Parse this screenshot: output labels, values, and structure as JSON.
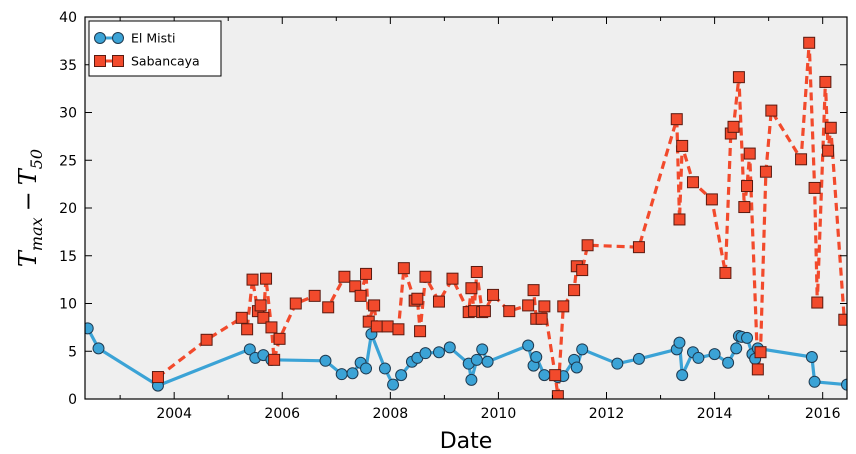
{
  "chart_data": {
    "type": "line",
    "xlabel": "Date",
    "ylabel_parts": {
      "main": "T",
      "sub1": "max",
      "minus": "−",
      "main2": "T",
      "sub2": "50"
    },
    "xlim": [
      2002.35,
      2016.45
    ],
    "ylim": [
      0,
      40
    ],
    "x_ticks": [
      2004,
      2006,
      2008,
      2010,
      2012,
      2014,
      2016
    ],
    "x_tick_labels": [
      "2004",
      "2006",
      "2008",
      "2010",
      "2012",
      "2014",
      "2016"
    ],
    "y_ticks": [
      0,
      5,
      10,
      15,
      20,
      25,
      30,
      35,
      40
    ],
    "y_tick_labels": [
      "0",
      "5",
      "10",
      "15",
      "20",
      "25",
      "30",
      "35",
      "40"
    ],
    "grid": false,
    "legend_position": "top-left",
    "plot_background": "#efefef",
    "series": [
      {
        "name": "El Misti",
        "color": "#3ba3d6",
        "line_style": "solid",
        "marker": "circle",
        "x": [
          2002.4,
          2002.6,
          2003.7,
          2005.4,
          2005.5,
          2005.65,
          2005.8,
          2006.8,
          2007.1,
          2007.3,
          2007.45,
          2007.55,
          2007.65,
          2007.9,
          2008.05,
          2008.2,
          2008.4,
          2008.5,
          2008.65,
          2008.9,
          2009.1,
          2009.45,
          2009.5,
          2009.6,
          2009.7,
          2009.8,
          2010.55,
          2010.65,
          2010.7,
          2010.85,
          2011.1,
          2011.2,
          2011.4,
          2011.45,
          2011.55,
          2012.2,
          2012.6,
          2013.3,
          2013.35,
          2013.4,
          2013.6,
          2013.7,
          2014.0,
          2014.25,
          2014.4,
          2014.45,
          2014.5,
          2014.6,
          2014.7,
          2014.75,
          2014.8,
          2015.8,
          2015.85,
          2016.45
        ],
        "y": [
          7.4,
          5.3,
          1.4,
          5.2,
          4.3,
          4.6,
          4.1,
          4.0,
          2.6,
          2.7,
          3.8,
          3.2,
          6.8,
          3.2,
          1.5,
          2.5,
          3.9,
          4.3,
          4.8,
          4.9,
          5.4,
          3.7,
          2.0,
          4.1,
          5.2,
          3.9,
          5.6,
          3.5,
          4.4,
          2.5,
          2.3,
          2.4,
          4.1,
          3.3,
          5.2,
          3.7,
          4.2,
          5.2,
          5.9,
          2.5,
          4.9,
          4.3,
          4.7,
          3.8,
          5.3,
          6.6,
          6.5,
          6.4,
          4.7,
          4.2,
          5.3,
          4.4,
          1.8,
          1.5
        ]
      },
      {
        "name": "Sabancaya",
        "color": "#f24a2c",
        "line_style": "dashed",
        "marker": "square",
        "x": [
          2003.7,
          2004.6,
          2005.25,
          2005.35,
          2005.45,
          2005.55,
          2005.6,
          2005.65,
          2005.7,
          2005.8,
          2005.85,
          2005.95,
          2006.25,
          2006.6,
          2006.85,
          2007.15,
          2007.35,
          2007.45,
          2007.55,
          2007.6,
          2007.7,
          2007.75,
          2007.95,
          2008.15,
          2008.25,
          2008.45,
          2008.5,
          2008.55,
          2008.65,
          2008.9,
          2009.15,
          2009.45,
          2009.5,
          2009.55,
          2009.6,
          2009.7,
          2009.75,
          2009.9,
          2010.2,
          2010.55,
          2010.65,
          2010.7,
          2010.8,
          2010.85,
          2011.05,
          2011.1,
          2011.2,
          2011.4,
          2011.45,
          2011.55,
          2011.65,
          2012.6,
          2013.3,
          2013.35,
          2013.4,
          2013.6,
          2013.95,
          2014.2,
          2014.3,
          2014.35,
          2014.45,
          2014.55,
          2014.6,
          2014.65,
          2014.8,
          2014.85,
          2014.95,
          2015.05,
          2015.6,
          2015.75,
          2015.85,
          2015.9,
          2016.05,
          2016.1,
          2016.15,
          2016.4
        ],
        "y": [
          2.3,
          6.2,
          8.5,
          7.3,
          12.5,
          9.2,
          9.8,
          8.5,
          12.6,
          7.5,
          4.1,
          6.3,
          10.0,
          10.8,
          9.6,
          12.8,
          11.8,
          10.8,
          13.1,
          8.1,
          9.8,
          7.6,
          7.6,
          7.3,
          13.7,
          10.3,
          10.5,
          7.1,
          12.8,
          10.2,
          12.6,
          9.1,
          11.6,
          9.2,
          13.3,
          9.1,
          9.2,
          10.9,
          9.2,
          9.8,
          11.4,
          8.4,
          8.4,
          9.7,
          2.5,
          0.3,
          9.7,
          11.4,
          13.9,
          13.5,
          16.1,
          15.9,
          29.3,
          18.8,
          26.5,
          22.7,
          20.9,
          13.2,
          27.8,
          28.5,
          33.7,
          20.1,
          22.3,
          25.7,
          3.1,
          4.9,
          23.8,
          30.2,
          25.1,
          37.3,
          22.1,
          10.1,
          33.2,
          26.0,
          28.4,
          8.3
        ]
      }
    ]
  }
}
